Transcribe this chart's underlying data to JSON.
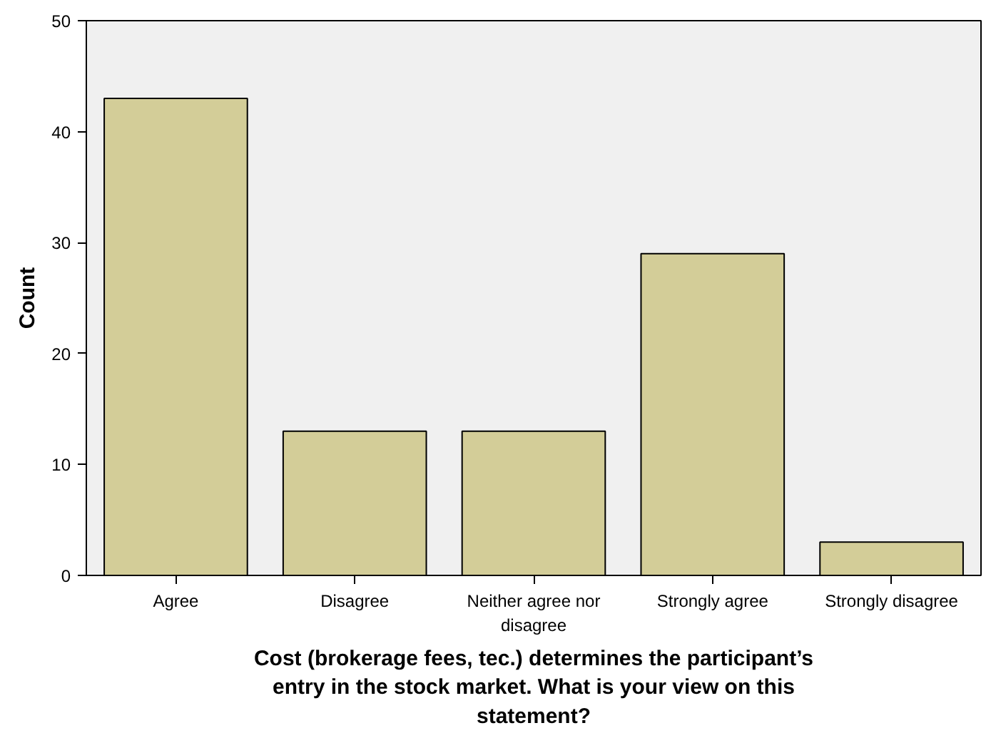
{
  "chart_data": {
    "type": "bar",
    "xlabel": "Cost (brokerage fees, tec.) determines the participant’s entry in the stock market. What is your view on this statement?",
    "ylabel": "Count",
    "categories": [
      "Agree",
      "Disagree",
      "Neither agree nor disagree",
      "Strongly agree",
      "Strongly disagree"
    ],
    "values": [
      43,
      13,
      13,
      29,
      3
    ],
    "color": "#d3cd98",
    "ylim": [
      0,
      50
    ],
    "yticks": [
      0,
      10,
      20,
      30,
      40,
      50
    ],
    "grid": false
  }
}
